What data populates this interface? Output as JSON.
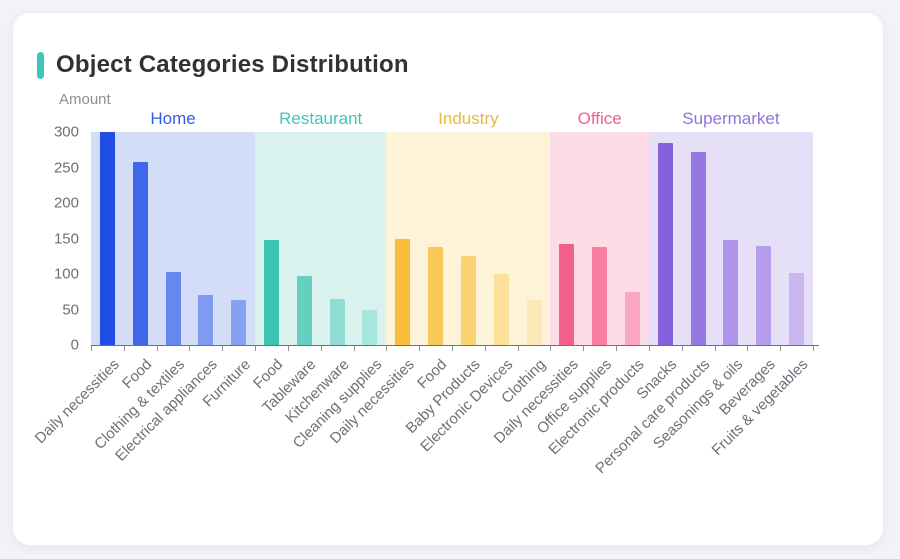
{
  "page": {
    "background_color": "#f1f3f6",
    "card_color": "#ffffff"
  },
  "header": {
    "title": "Object Categories Distribution",
    "accent_color": "#3ec6b8",
    "title_color": "#303236"
  },
  "chart_data": {
    "type": "bar",
    "title": "Object Categories Distribution",
    "xlabel": "",
    "ylabel": "Amount",
    "ylim": [
      0,
      300
    ],
    "yticks": [
      0,
      50,
      100,
      150,
      200,
      250,
      300
    ],
    "grid": false,
    "legend_position": "group-headers-above-bands",
    "xlabel_rotation_deg": 45,
    "axis_color": "#6e7079",
    "tick_label_color": "#6e7079",
    "groups": [
      {
        "name": "Home",
        "label_color": "#2f5ce6",
        "band_color": "#d3ddf8",
        "categories": [
          "Daily necessities",
          "Food",
          "Clothing & textiles",
          "Electrical appliances",
          "Furniture"
        ],
        "values": [
          300,
          258,
          103,
          70,
          64
        ],
        "bar_colors": [
          "#1e4ce4",
          "#3f67e9",
          "#6687ee",
          "#7f9af1",
          "#87a1f2"
        ]
      },
      {
        "name": "Restaurant",
        "label_color": "#3ec6b6",
        "band_color": "#d9f2ee",
        "categories": [
          "Food",
          "Tableware",
          "Kitchenware",
          "Cleaning supplies"
        ],
        "values": [
          148,
          97,
          65,
          50
        ],
        "bar_colors": [
          "#3ec4b4",
          "#65cfc2",
          "#8edcd4",
          "#a8e5de"
        ]
      },
      {
        "name": "Industry",
        "label_color": "#ecb844",
        "band_color": "#fdf3d8",
        "categories": [
          "Daily necessities",
          "Food",
          "Baby Products",
          "Electronic Devices",
          "Clothing"
        ],
        "values": [
          150,
          138,
          126,
          100,
          63
        ],
        "bar_colors": [
          "#f9bd3c",
          "#fac858",
          "#fbd273",
          "#fcdf98",
          "#fde9b8"
        ]
      },
      {
        "name": "Office",
        "label_color": "#f45f8e",
        "band_color": "#fcdde7",
        "categories": [
          "Daily necessities",
          "Office supplies",
          "Electronic products"
        ],
        "values": [
          142,
          138,
          75
        ],
        "bar_colors": [
          "#f4608c",
          "#f67fa2",
          "#f9a6c0"
        ]
      },
      {
        "name": "Supermarket",
        "label_color": "#9272e0",
        "band_color": "#e5dff8",
        "categories": [
          "Snacks",
          "Personal care products",
          "Seasonings & oils",
          "Beverages",
          "Fruits & vegetables"
        ],
        "values": [
          285,
          272,
          148,
          140,
          102
        ],
        "bar_colors": [
          "#8562dc",
          "#9678e2",
          "#af92e9",
          "#b69dec",
          "#c9b6f1"
        ]
      }
    ]
  }
}
